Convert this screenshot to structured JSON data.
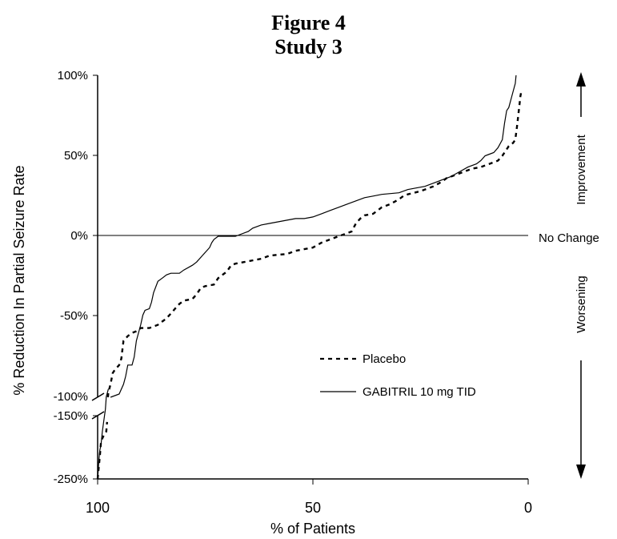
{
  "chart_data": {
    "type": "line",
    "title": "Figure 4",
    "subtitle": "Study 3",
    "xlabel": "% of Patients",
    "ylabel": "% Reduction In Partial Seizure Rate",
    "xlim": [
      100,
      0
    ],
    "x_ticks": [
      "100",
      "50",
      "0"
    ],
    "y_ticks_upper": [
      "100%",
      "50%",
      "0%",
      "-50%",
      "-100%"
    ],
    "y_ticks_lower": [
      "-150%",
      "-250%"
    ],
    "upper_ylim": [
      -100,
      100
    ],
    "lower_ylim": [
      -250,
      -150
    ],
    "right_annotations": {
      "improvement": "Improvement",
      "no_change": "No Change",
      "worsening": "Worsening"
    },
    "series": [
      {
        "name": "Placebo",
        "style": "dotted",
        "points": [
          [
            100,
            -250
          ],
          [
            99.5,
            -215
          ],
          [
            99.2,
            -190
          ],
          [
            98.5,
            -180
          ],
          [
            98,
            -175
          ],
          [
            97.8,
            -160
          ],
          [
            97.6,
            -100
          ],
          [
            97.5,
            -97
          ],
          [
            97,
            -92
          ],
          [
            96.5,
            -85
          ],
          [
            96,
            -83
          ],
          [
            95,
            -80
          ],
          [
            94.5,
            -76
          ],
          [
            94,
            -65
          ],
          [
            93,
            -62
          ],
          [
            92,
            -60
          ],
          [
            91,
            -59
          ],
          [
            90,
            -57
          ],
          [
            88,
            -57
          ],
          [
            87,
            -56
          ],
          [
            86,
            -55
          ],
          [
            85,
            -53
          ],
          [
            84,
            -51
          ],
          [
            83,
            -48
          ],
          [
            82,
            -45
          ],
          [
            81,
            -42
          ],
          [
            80,
            -40
          ],
          [
            78,
            -39
          ],
          [
            77,
            -36
          ],
          [
            76,
            -32
          ],
          [
            75,
            -31
          ],
          [
            73,
            -30
          ],
          [
            72,
            -26
          ],
          [
            71,
            -24
          ],
          [
            70,
            -22
          ],
          [
            69,
            -18
          ],
          [
            68,
            -17
          ],
          [
            66,
            -16
          ],
          [
            62,
            -14
          ],
          [
            60,
            -12
          ],
          [
            56,
            -11
          ],
          [
            54,
            -9
          ],
          [
            52,
            -8
          ],
          [
            50,
            -7
          ],
          [
            48,
            -4
          ],
          [
            46,
            -2
          ],
          [
            44,
            0
          ],
          [
            42,
            2
          ],
          [
            41,
            3
          ],
          [
            40,
            8
          ],
          [
            39,
            11
          ],
          [
            38,
            13
          ],
          [
            36,
            14
          ],
          [
            34,
            18
          ],
          [
            32,
            20
          ],
          [
            30,
            23
          ],
          [
            29,
            25
          ],
          [
            28,
            26
          ],
          [
            25,
            28
          ],
          [
            22,
            31
          ],
          [
            20,
            34
          ],
          [
            19,
            36
          ],
          [
            17,
            38
          ],
          [
            15,
            40
          ],
          [
            13,
            42
          ],
          [
            11,
            43
          ],
          [
            9,
            45
          ],
          [
            7,
            47
          ],
          [
            6,
            50
          ],
          [
            5,
            54
          ],
          [
            4.5,
            56
          ],
          [
            4,
            57
          ],
          [
            3.5,
            58
          ],
          [
            3,
            60
          ],
          [
            2.6,
            68
          ],
          [
            2.3,
            75
          ],
          [
            2,
            82
          ],
          [
            1.8,
            87
          ],
          [
            1.6,
            90
          ]
        ]
      },
      {
        "name": "GABITRIL 10 mg TID",
        "style": "solid",
        "points": [
          [
            100,
            -250
          ],
          [
            99.7,
            -220
          ],
          [
            99.5,
            -205
          ],
          [
            99.2,
            -195
          ],
          [
            98.9,
            -175
          ],
          [
            98.6,
            -160
          ],
          [
            98.4,
            -150
          ],
          [
            98.2,
            -140
          ],
          [
            98,
            -120
          ],
          [
            97.5,
            -108
          ],
          [
            97,
            -100
          ],
          [
            95,
            -98
          ],
          [
            94,
            -92
          ],
          [
            93.5,
            -87
          ],
          [
            93,
            -80
          ],
          [
            92,
            -80
          ],
          [
            91.5,
            -75
          ],
          [
            91,
            -65
          ],
          [
            90,
            -55
          ],
          [
            89.5,
            -49
          ],
          [
            89,
            -46
          ],
          [
            88,
            -45
          ],
          [
            87.5,
            -41
          ],
          [
            87,
            -35
          ],
          [
            86,
            -28
          ],
          [
            85,
            -26
          ],
          [
            84,
            -24
          ],
          [
            83,
            -23
          ],
          [
            81,
            -23
          ],
          [
            80,
            -21
          ],
          [
            78,
            -18
          ],
          [
            77,
            -16
          ],
          [
            76,
            -13
          ],
          [
            75,
            -10
          ],
          [
            74,
            -7
          ],
          [
            73.5,
            -4
          ],
          [
            73,
            -2
          ],
          [
            72,
            0
          ],
          [
            68,
            0
          ],
          [
            67,
            1
          ],
          [
            65,
            3
          ],
          [
            64,
            5
          ],
          [
            62,
            7
          ],
          [
            60,
            8
          ],
          [
            58,
            9
          ],
          [
            56,
            10
          ],
          [
            54,
            11
          ],
          [
            52,
            11
          ],
          [
            50,
            12
          ],
          [
            48,
            14
          ],
          [
            46,
            16
          ],
          [
            44,
            18
          ],
          [
            42,
            20
          ],
          [
            40,
            22
          ],
          [
            38,
            24
          ],
          [
            36,
            25
          ],
          [
            34,
            26
          ],
          [
            30,
            27
          ],
          [
            28,
            29
          ],
          [
            26,
            30
          ],
          [
            24,
            31
          ],
          [
            22,
            33
          ],
          [
            20,
            35
          ],
          [
            18,
            37
          ],
          [
            16,
            40
          ],
          [
            14,
            43
          ],
          [
            12,
            45
          ],
          [
            11,
            47
          ],
          [
            10,
            50
          ],
          [
            9,
            51
          ],
          [
            8,
            52
          ],
          [
            7,
            55
          ],
          [
            6,
            60
          ],
          [
            5.5,
            70
          ],
          [
            5,
            78
          ],
          [
            4.5,
            80
          ],
          [
            4,
            85
          ],
          [
            3.5,
            90
          ],
          [
            3,
            95
          ],
          [
            2.8,
            100
          ]
        ]
      }
    ],
    "legend": {
      "placement": "lower-right"
    },
    "colors": {
      "line": "#000000",
      "background": "#ffffff"
    },
    "grid": false
  }
}
